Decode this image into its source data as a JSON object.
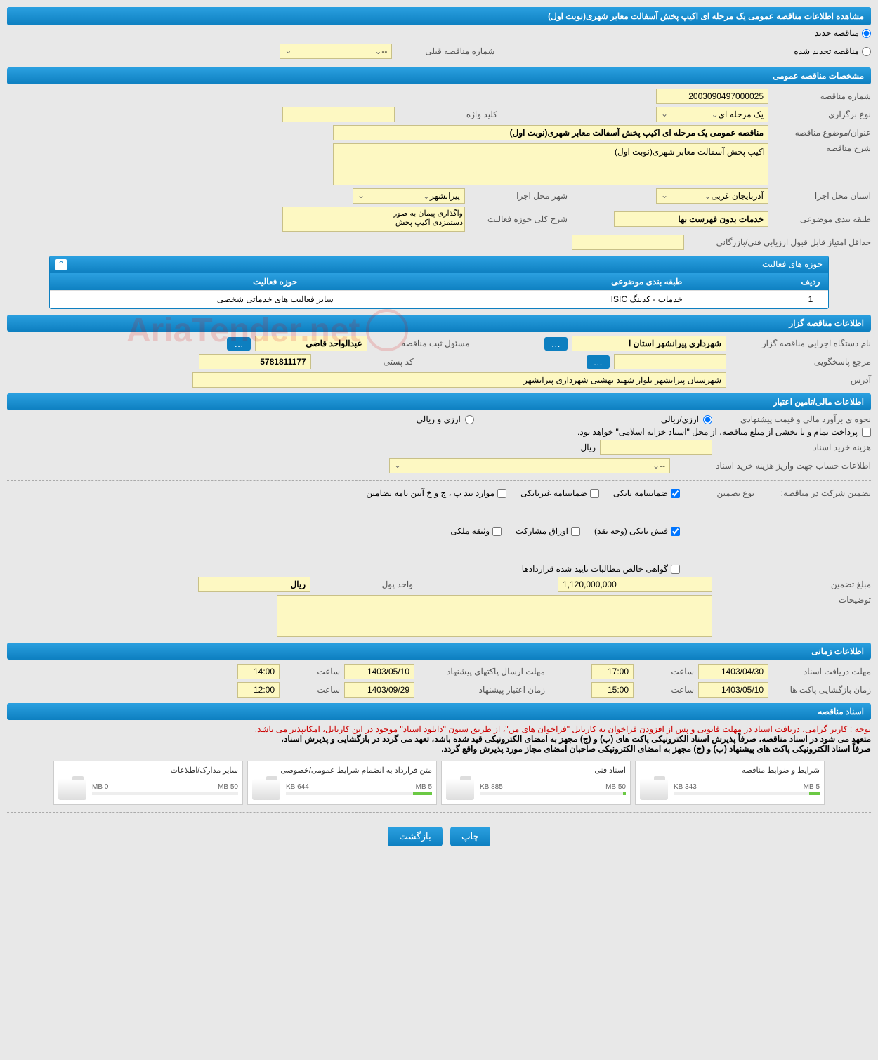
{
  "header": {
    "title": "مشاهده اطلاعات مناقصه عمومی یک مرحله ای اکیپ پخش آسفالت معابر شهری(نوبت اول)"
  },
  "type_radios": {
    "new": "مناقصه جدید",
    "renewed": "مناقصه تجدید شده",
    "prev_label": "شماره مناقصه قبلی",
    "prev_placeholder": "--"
  },
  "sections": {
    "general": "مشخصات مناقصه عمومی",
    "organizer": "اطلاعات مناقصه گزار",
    "financial": "اطلاعات مالی/تامین اعتبار",
    "timing": "اطلاعات زمانی",
    "docs": "اسناد مناقصه"
  },
  "general": {
    "number_label": "شماره مناقصه",
    "number": "2003090497000025",
    "holding_type_label": "نوع برگزاری",
    "holding_type": "یک مرحله ای",
    "keyword_label": "کلید واژه",
    "keyword": "",
    "title_label": "عنوان/موضوع مناقصه",
    "title": "مناقصه عمومی یک مرحله ای اکیپ پخش آسفالت معابر شهری(نوبت اول)",
    "desc_label": "شرح مناقصه",
    "desc": "اکیپ پخش آسفالت معابر شهری(نوبت اول)",
    "province_label": "استان محل اجرا",
    "province": "آذربایجان غربی",
    "city_label": "شهر محل اجرا",
    "city": "پیرانشهر",
    "category_label": "طبقه بندی موضوعی",
    "category": "خدمات بدون فهرست بها",
    "activity_desc_label": "شرح کلی حوزه فعالیت",
    "activity_desc_line1": "واگذاری پیمان به صور",
    "activity_desc_line2": "دستمزدی اکیپ پخش",
    "min_score_label": "حداقل امتیاز قابل قبول ارزیابی فنی/بازرگانی",
    "min_score": ""
  },
  "activity_table": {
    "title": "حوزه های فعالیت",
    "col_row": "ردیف",
    "col_category": "طبقه بندی موضوعی",
    "col_area": "حوزه فعالیت",
    "rows": [
      {
        "num": "1",
        "category": "خدمات - کدینگ ISIC",
        "area": "سایر فعالیت های خدماتی شخصی"
      }
    ]
  },
  "organizer": {
    "org_label": "نام دستگاه اجرایی مناقصه گزار",
    "org": "شهرداری پیرانشهر استان ا",
    "registrar_label": "مسئول ثبت مناقصه",
    "registrar": "عبدالواحد قاضی",
    "contact_label": "مرجع پاسخگویی",
    "contact": "",
    "postal_label": "کد پستی",
    "postal": "5781811177",
    "address_label": "آدرس",
    "address": "شهرستان پیرانشهر بلوار شهید بهشتی شهرداری پیرانشهر"
  },
  "financial": {
    "estimate_label": "نحوه ی برآورد مالی و قیمت پیشنهادی",
    "currency_rial": "ارزی/ریالی",
    "currency_foreign": "ارزی و ریالی",
    "payment_note": "پرداخت تمام و یا بخشی از مبلغ مناقصه، از محل \"اسناد خزانه اسلامی\" خواهد بود.",
    "doc_cost_label": "هزینه خرید اسناد",
    "doc_cost_unit": "ریال",
    "account_label": "اطلاعات حساب جهت واریز هزینه خرید اسناد",
    "account_placeholder": "--",
    "guarantee_label": "تضمین شرکت در مناقصه:",
    "guarantee_type_label": "نوع تضمین",
    "gt_bank": "ضمانتنامه بانکی",
    "gt_nonbank": "ضمانتنامه غیربانکی",
    "gt_regulation": "موارد بند پ ، ج و خ آیین نامه تضامین",
    "gt_cash": "فیش بانکی (وجه نقد)",
    "gt_bonds": "اوراق مشارکت",
    "gt_property": "وثیقه ملکی",
    "gt_contract": "گواهی خالص مطالبات تایید شده قراردادها",
    "amount_label": "مبلغ تضمین",
    "amount": "1,120,000,000",
    "unit_label": "واحد پول",
    "unit": "ریال",
    "notes_label": "توضیحات"
  },
  "timing": {
    "receive_label": "مهلت دریافت اسناد",
    "receive_date": "1403/04/30",
    "receive_time_label": "ساعت",
    "receive_time": "17:00",
    "send_label": "مهلت ارسال پاکتهای پیشنهاد",
    "send_date": "1403/05/10",
    "send_time": "14:00",
    "open_label": "زمان بازگشایی پاکت ها",
    "open_date": "1403/05/10",
    "open_time": "15:00",
    "credit_label": "زمان اعتبار پیشنهاد",
    "credit_date": "1403/09/29",
    "credit_time": "12:00"
  },
  "docs": {
    "warning": "توجه : کاربر گرامی، دریافت اسناد در مهلت قانونی و پس از افزودن فراخوان به کارتابل \"فراخوان های من\"، از طریق ستون \"دانلود اسناد\" موجود در این کارتابل، امکانپذیر می باشد.",
    "commit1": "متعهد می شود در اسناد مناقصه، صرفاً پذیرش اسناد الکترونیکی پاکت های (ب) و (ج) مجهز به امضای الکترونیکی قید شده باشد، تعهد می گردد در بازگشایی و پذیرش اسناد،",
    "commit2": "صرفاً اسناد الکترونیکی پاکت های پیشنهاد (ب) و (ج) مجهز به امضای الکترونیکی صاحبان امضای مجاز مورد پذیرش واقع گردد.",
    "cards": [
      {
        "title": "شرایط و ضوابط مناقصه",
        "used": "343 KB",
        "cap": "5 MB",
        "pct": 7
      },
      {
        "title": "اسناد فنی",
        "used": "885 KB",
        "cap": "50 MB",
        "pct": 2
      },
      {
        "title": "متن قرارداد به انضمام شرایط عمومی/خصوصی",
        "used": "644 KB",
        "cap": "5 MB",
        "pct": 13
      },
      {
        "title": "سایر مدارک/اطلاعات",
        "used": "0 MB",
        "cap": "50 MB",
        "pct": 0
      }
    ]
  },
  "buttons": {
    "print": "چاپ",
    "back": "بازگشت"
  }
}
